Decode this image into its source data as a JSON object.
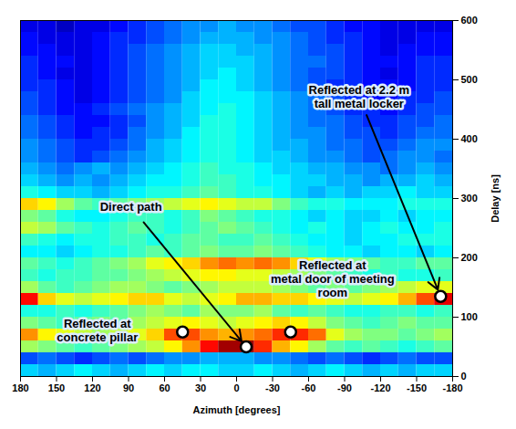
{
  "chart_data": {
    "type": "heatmap",
    "xlabel": "Azimuth [degrees]",
    "ylabel": "Delay [ns]",
    "xlim": [
      180,
      -180
    ],
    "ylim": [
      0,
      600
    ],
    "xticks": [
      180,
      150,
      120,
      90,
      60,
      30,
      0,
      -30,
      -60,
      -90,
      -120,
      -150,
      -180
    ],
    "yticks": [
      0,
      100,
      200,
      300,
      400,
      500,
      600
    ],
    "azimuth_bins": [
      180,
      165,
      150,
      135,
      120,
      105,
      90,
      75,
      60,
      45,
      30,
      15,
      0,
      -15,
      -30,
      -45,
      -60,
      -75,
      -90,
      -105,
      -120,
      -135,
      -150,
      -165,
      -180
    ],
    "delay_bins": [
      0,
      20,
      40,
      60,
      80,
      100,
      120,
      140,
      160,
      180,
      200,
      220,
      240,
      260,
      280,
      300,
      320,
      340,
      360,
      380,
      400,
      420,
      440,
      460,
      480,
      500,
      520,
      540,
      560,
      580,
      600
    ],
    "zlim": [
      -30,
      0
    ],
    "cells": [
      [
        -20,
        -21,
        -20,
        -19,
        -20,
        -21,
        -20,
        -19,
        -20,
        -19,
        -19,
        -20,
        -20,
        -19,
        -20,
        -21,
        -20,
        -19,
        -20,
        -21,
        -20,
        -21,
        -20,
        -20
      ],
      [
        -24,
        -23,
        -24,
        -25,
        -24,
        -23,
        -24,
        -23,
        -22,
        -22,
        -21,
        -21,
        -21,
        -22,
        -22,
        -23,
        -24,
        -23,
        -24,
        -25,
        -24,
        -23,
        -24,
        -24
      ],
      [
        -14,
        -15,
        -16,
        -17,
        -16,
        -15,
        -14,
        -13,
        -11,
        -8,
        -4,
        -1,
        -1,
        -5,
        -9,
        -11,
        -14,
        -16,
        -17,
        -16,
        -17,
        -18,
        -17,
        -16
      ],
      [
        -8,
        -11,
        -12,
        -13,
        -14,
        -13,
        -12,
        -10,
        -6,
        -6,
        -8,
        -9,
        -8,
        -7,
        -5,
        -5,
        -7,
        -12,
        -14,
        -15,
        -15,
        -16,
        -15,
        -14
      ],
      [
        -15,
        -16,
        -17,
        -16,
        -15,
        -16,
        -14,
        -13,
        -12,
        -11,
        -12,
        -13,
        -12,
        -11,
        -10,
        -11,
        -13,
        -15,
        -16,
        -17,
        -16,
        -15,
        -16,
        -16
      ],
      [
        -18,
        -18,
        -17,
        -18,
        -17,
        -16,
        -15,
        -14,
        -15,
        -16,
        -14,
        -15,
        -15,
        -14,
        -16,
        -17,
        -16,
        -17,
        -18,
        -18,
        -17,
        -17,
        -18,
        -17
      ],
      [
        -4,
        -10,
        -12,
        -13,
        -12,
        -11,
        -10,
        -10,
        -12,
        -13,
        -12,
        -11,
        -9,
        -9,
        -10,
        -10,
        -11,
        -12,
        -13,
        -12,
        -11,
        -9,
        -6,
        -3
      ],
      [
        -14,
        -16,
        -17,
        -16,
        -15,
        -14,
        -14,
        -15,
        -16,
        -15,
        -14,
        -13,
        -13,
        -13,
        -14,
        -15,
        -16,
        -15,
        -16,
        -15,
        -14,
        -13,
        -12,
        -12
      ],
      [
        -17,
        -18,
        -17,
        -17,
        -16,
        -16,
        -15,
        -14,
        -13,
        -12,
        -11,
        -11,
        -12,
        -12,
        -13,
        -14,
        -15,
        -16,
        -17,
        -18,
        -17,
        -18,
        -18,
        -17
      ],
      [
        -16,
        -17,
        -18,
        -17,
        -16,
        -15,
        -14,
        -12,
        -11,
        -10,
        -8,
        -7,
        -8,
        -7,
        -8,
        -10,
        -12,
        -14,
        -15,
        -16,
        -17,
        -17,
        -16,
        -16
      ],
      [
        -19,
        -19,
        -20,
        -19,
        -18,
        -18,
        -17,
        -16,
        -17,
        -16,
        -15,
        -16,
        -16,
        -15,
        -16,
        -17,
        -18,
        -19,
        -19,
        -20,
        -19,
        -19,
        -20,
        -19
      ],
      [
        -17,
        -18,
        -19,
        -18,
        -18,
        -17,
        -17,
        -18,
        -17,
        -16,
        -16,
        -17,
        -17,
        -16,
        -17,
        -18,
        -19,
        -19,
        -20,
        -19,
        -19,
        -18,
        -18,
        -18
      ],
      [
        -13,
        -14,
        -16,
        -17,
        -18,
        -17,
        -16,
        -17,
        -18,
        -17,
        -16,
        -15,
        -16,
        -17,
        -18,
        -19,
        -18,
        -19,
        -20,
        -19,
        -18,
        -19,
        -19,
        -18
      ],
      [
        -15,
        -16,
        -18,
        -19,
        -19,
        -18,
        -17,
        -17,
        -18,
        -17,
        -15,
        -16,
        -17,
        -18,
        -18,
        -19,
        -20,
        -19,
        -20,
        -20,
        -19,
        -20,
        -19,
        -19
      ],
      [
        -10,
        -11,
        -14,
        -16,
        -17,
        -16,
        -15,
        -14,
        -13,
        -12,
        -11,
        -12,
        -13,
        -13,
        -15,
        -17,
        -18,
        -18,
        -19,
        -19,
        -19,
        -18,
        -18,
        -18
      ],
      [
        -18,
        -19,
        -20,
        -20,
        -21,
        -20,
        -19,
        -18,
        -18,
        -17,
        -16,
        -17,
        -18,
        -18,
        -19,
        -20,
        -21,
        -20,
        -21,
        -20,
        -20,
        -19,
        -20,
        -20
      ],
      [
        -20,
        -21,
        -22,
        -21,
        -22,
        -21,
        -20,
        -19,
        -19,
        -18,
        -17,
        -17,
        -18,
        -19,
        -19,
        -20,
        -20,
        -21,
        -21,
        -22,
        -21,
        -21,
        -20,
        -21
      ],
      [
        -21,
        -22,
        -23,
        -22,
        -21,
        -22,
        -21,
        -20,
        -19,
        -18,
        -17,
        -18,
        -18,
        -19,
        -20,
        -20,
        -21,
        -21,
        -22,
        -22,
        -23,
        -22,
        -21,
        -22
      ],
      [
        -22,
        -23,
        -24,
        -25,
        -24,
        -23,
        -22,
        -21,
        -20,
        -19,
        -18,
        -18,
        -19,
        -20,
        -20,
        -21,
        -22,
        -22,
        -23,
        -24,
        -23,
        -22,
        -22,
        -23
      ],
      [
        -22,
        -23,
        -24,
        -25,
        -25,
        -24,
        -23,
        -21,
        -20,
        -19,
        -18,
        -18,
        -19,
        -20,
        -21,
        -21,
        -22,
        -23,
        -23,
        -24,
        -24,
        -23,
        -22,
        -22
      ],
      [
        -23,
        -24,
        -25,
        -26,
        -25,
        -25,
        -23,
        -22,
        -21,
        -19,
        -18,
        -18,
        -19,
        -20,
        -21,
        -22,
        -22,
        -23,
        -24,
        -24,
        -25,
        -24,
        -23,
        -23
      ],
      [
        -23,
        -24,
        -25,
        -26,
        -26,
        -25,
        -24,
        -22,
        -21,
        -20,
        -18,
        -18,
        -19,
        -20,
        -21,
        -22,
        -23,
        -23,
        -24,
        -25,
        -25,
        -24,
        -24,
        -23
      ],
      [
        -24,
        -25,
        -26,
        -26,
        -25,
        -24,
        -23,
        -22,
        -21,
        -20,
        -19,
        -18,
        -19,
        -20,
        -21,
        -22,
        -23,
        -24,
        -25,
        -25,
        -26,
        -25,
        -24,
        -24
      ],
      [
        -24,
        -25,
        -26,
        -27,
        -26,
        -25,
        -24,
        -23,
        -22,
        -20,
        -19,
        -19,
        -19,
        -20,
        -21,
        -22,
        -23,
        -24,
        -25,
        -26,
        -26,
        -25,
        -25,
        -24
      ],
      [
        -25,
        -25,
        -26,
        -27,
        -26,
        -25,
        -24,
        -23,
        -22,
        -21,
        -19,
        -19,
        -20,
        -21,
        -22,
        -23,
        -24,
        -25,
        -25,
        -26,
        -26,
        -26,
        -25,
        -25
      ],
      [
        -25,
        -26,
        -27,
        -27,
        -26,
        -25,
        -24,
        -23,
        -22,
        -21,
        -20,
        -19,
        -20,
        -21,
        -22,
        -23,
        -24,
        -24,
        -25,
        -26,
        -27,
        -26,
        -25,
        -25
      ],
      [
        -25,
        -26,
        -26,
        -27,
        -26,
        -25,
        -24,
        -23,
        -22,
        -21,
        -20,
        -20,
        -20,
        -21,
        -22,
        -23,
        -23,
        -24,
        -25,
        -26,
        -26,
        -26,
        -25,
        -25
      ],
      [
        -26,
        -26,
        -27,
        -27,
        -26,
        -25,
        -24,
        -23,
        -22,
        -21,
        -20,
        -20,
        -21,
        -21,
        -22,
        -23,
        -24,
        -24,
        -25,
        -26,
        -27,
        -26,
        -26,
        -26
      ],
      [
        -26,
        -27,
        -27,
        -27,
        -26,
        -25,
        -25,
        -24,
        -23,
        -22,
        -21,
        -21,
        -21,
        -22,
        -22,
        -23,
        -24,
        -25,
        -25,
        -26,
        -27,
        -27,
        -26,
        -26
      ],
      [
        -27,
        -27,
        -28,
        -27,
        -27,
        -26,
        -25,
        -24,
        -23,
        -22,
        -22,
        -21,
        -22,
        -22,
        -23,
        -24,
        -24,
        -25,
        -26,
        -26,
        -27,
        -27,
        -27,
        -27
      ]
    ],
    "annotations": [
      {
        "label": "Direct path",
        "azimuth": -8,
        "delay": 50,
        "label_azimuth": 88,
        "label_delay": 286,
        "arrow": true
      },
      {
        "label": "Reflected at\nconcrete pillar",
        "azimuth": 45,
        "delay": 75,
        "label_azimuth": 116,
        "label_delay": 78,
        "arrow": false
      },
      {
        "label": "Reflected at\nmetal door of meeting\nroom",
        "azimuth": -45,
        "delay": 75,
        "label_azimuth": -80,
        "label_delay": 165,
        "arrow": false
      },
      {
        "label": "Reflected at 2.2 m\ntall metal locker",
        "azimuth": -170,
        "delay": 135,
        "label_azimuth": -102,
        "label_delay": 472,
        "arrow": true
      }
    ]
  }
}
